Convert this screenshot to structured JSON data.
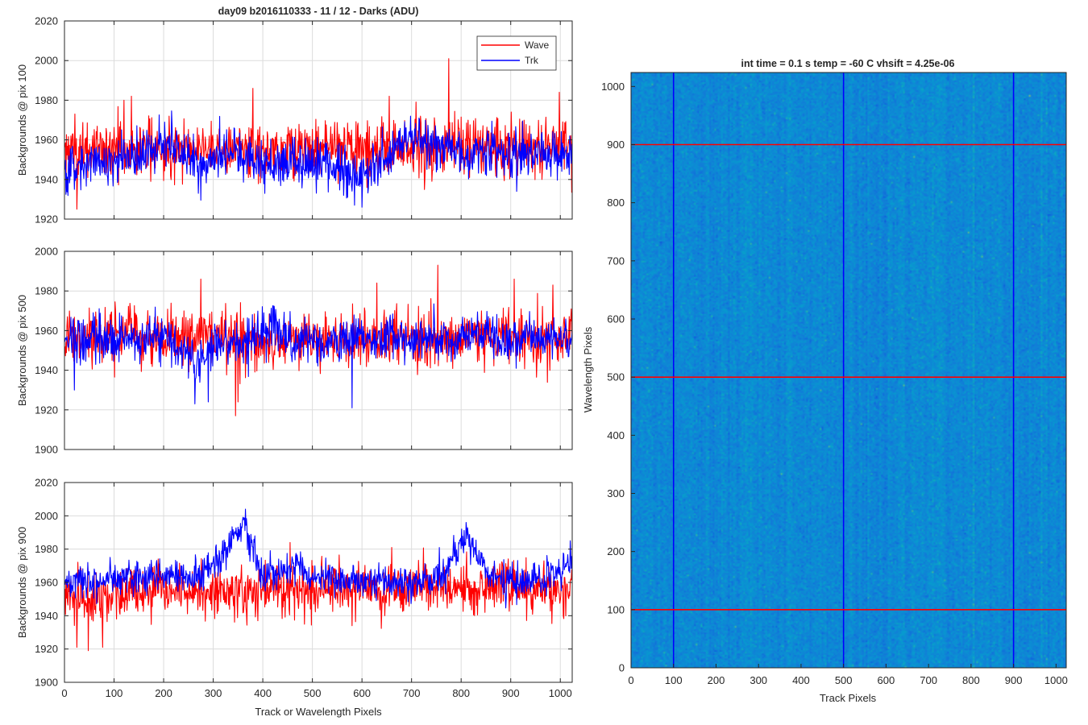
{
  "figure": {
    "left_title": "day09 b2016110333 - 11 / 12 - Darks (ADU)",
    "right_title": "int time = 0.1 s   temp = -60 C   vhsift = 4.25e-06"
  },
  "chart_data": [
    {
      "type": "line",
      "id": "pix100",
      "title": "day09 b2016110333 - 11 / 12 - Darks (ADU)",
      "xlabel": "",
      "ylabel": "Backgrounds @ pix 100",
      "xlim": [
        0,
        1024
      ],
      "ylim": [
        1920,
        2020
      ],
      "xticks": [
        0,
        100,
        200,
        300,
        400,
        500,
        600,
        700,
        800,
        900,
        1000
      ],
      "yticks": [
        1920,
        1940,
        1960,
        1980,
        2000,
        2020
      ],
      "xtick_labels_visible": false,
      "grid": true,
      "legend": {
        "position": "top-right",
        "entries": [
          "Wave",
          "Trk"
        ]
      },
      "series": [
        {
          "name": "Wave",
          "color": "#ff0000",
          "profile": {
            "anchors_x": [
              0,
              200,
              400,
              500,
              600,
              700,
              800,
              900,
              1024
            ],
            "anchors_y": [
              1954,
              1956,
              1955,
              1956,
              1955,
              1956,
              1957,
              1957,
              1957
            ]
          },
          "noise_sd": 7.2,
          "spikes": [
            [
              120,
              1980
            ],
            [
              135,
              1982
            ],
            [
              380,
              1986
            ],
            [
              655,
              1982
            ],
            [
              775,
              2001
            ],
            [
              998,
              1984
            ],
            [
              25,
              1925
            ]
          ]
        },
        {
          "name": "Trk",
          "color": "#0000ff",
          "profile": {
            "anchors_x": [
              0,
              60,
              150,
              200,
              240,
              300,
              340,
              400,
              470,
              520,
              560,
              580,
              620,
              650,
              700,
              760,
              800,
              900,
              1024
            ],
            "anchors_y": [
              1944,
              1948,
              1953,
              1957,
              1952,
              1950,
              1955,
              1948,
              1949,
              1948,
              1945,
              1940,
              1946,
              1950,
              1962,
              1956,
              1952,
              1954,
              1954
            ]
          },
          "noise_sd": 5.8,
          "spikes": [
            [
              20,
              1935
            ],
            [
              585,
              1927
            ],
            [
              600,
              1926
            ],
            [
              270,
              1933
            ]
          ]
        }
      ]
    },
    {
      "type": "line",
      "id": "pix500",
      "title": "",
      "xlabel": "",
      "ylabel": "Backgrounds @ pix 500",
      "xlim": [
        0,
        1024
      ],
      "ylim": [
        1900,
        2000
      ],
      "xticks": [
        0,
        100,
        200,
        300,
        400,
        500,
        600,
        700,
        800,
        900,
        1000
      ],
      "yticks": [
        1900,
        1920,
        1940,
        1960,
        1980,
        2000
      ],
      "xtick_labels_visible": false,
      "grid": true,
      "series": [
        {
          "name": "Wave",
          "color": "#ff0000",
          "profile": {
            "anchors_x": [
              0,
              100,
              200,
              300,
              400,
              500,
              600,
              700,
              800,
              900,
              1024
            ],
            "anchors_y": [
              1955,
              1956,
              1957,
              1956,
              1955,
              1956,
              1955,
              1956,
              1956,
              1956,
              1956
            ]
          },
          "noise_sd": 7.0,
          "spikes": [
            [
              345,
              1917
            ],
            [
              350,
              1924
            ],
            [
              275,
              1986
            ],
            [
              753,
              1993
            ],
            [
              907,
              1986
            ],
            [
              985,
              1983
            ],
            [
              630,
              1984
            ]
          ]
        },
        {
          "name": "Trk",
          "color": "#0000ff",
          "profile": {
            "anchors_x": [
              0,
              100,
              200,
              250,
              270,
              300,
              360,
              420,
              450,
              500,
              560,
              640,
              700,
              760,
              820,
              900,
              960,
              1024
            ],
            "anchors_y": [
              1955,
              1956,
              1956,
              1948,
              1942,
              1953,
              1952,
              1962,
              1955,
              1954,
              1955,
              1957,
              1956,
              1955,
              1958,
              1956,
              1956,
              1956
            ]
          },
          "noise_sd": 5.5,
          "spikes": [
            [
              263,
              1923
            ],
            [
              290,
              1924
            ],
            [
              580,
              1921
            ],
            [
              20,
              1930
            ]
          ]
        }
      ]
    },
    {
      "type": "line",
      "id": "pix900",
      "title": "",
      "xlabel": "Track or Wavelength Pixels",
      "ylabel": "Backgrounds @ pix 900",
      "xlim": [
        0,
        1024
      ],
      "ylim": [
        1900,
        2020
      ],
      "xticks": [
        0,
        100,
        200,
        300,
        400,
        500,
        600,
        700,
        800,
        900,
        1000
      ],
      "yticks": [
        1900,
        1920,
        1940,
        1960,
        1980,
        2000,
        2020
      ],
      "xtick_labels_visible": true,
      "grid": true,
      "series": [
        {
          "name": "Wave",
          "color": "#ff0000",
          "profile": {
            "anchors_x": [
              0,
              60,
              120,
              200,
              300,
              400,
              500,
              600,
              700,
              800,
              900,
              1024
            ],
            "anchors_y": [
              1954,
              1950,
              1953,
              1955,
              1954,
              1955,
              1956,
              1956,
              1957,
              1956,
              1956,
              1956
            ]
          },
          "noise_sd": 8.0,
          "spikes": [
            [
              25,
              1921
            ],
            [
              48,
              1919
            ],
            [
              77,
              1921
            ],
            [
              455,
              1984
            ],
            [
              580,
              1934
            ],
            [
              660,
              1981
            ]
          ]
        },
        {
          "name": "Trk",
          "color": "#0000ff",
          "profile": {
            "anchors_x": [
              0,
              100,
              200,
              260,
              300,
              330,
              360,
              380,
              400,
              450,
              470,
              500,
              700,
              760,
              790,
              810,
              830,
              860,
              900,
              980,
              1024
            ],
            "anchors_y": [
              1960,
              1962,
              1963,
              1964,
              1970,
              1980,
              1996,
              1982,
              1964,
              1966,
              1972,
              1962,
              1961,
              1963,
              1980,
              1990,
              1978,
              1962,
              1960,
              1964,
              1972
            ]
          },
          "noise_sd": 5.2,
          "spikes": [
            [
              365,
              2004
            ],
            [
              810,
              1996
            ],
            [
              1020,
              1985
            ]
          ]
        }
      ]
    },
    {
      "type": "heatmap",
      "id": "dark-frame",
      "title": "int time = 0.1 s   temp = -60 C   vhsift = 4.25e-06",
      "xlabel": "Track Pixels",
      "ylabel": "Wavelength Pixels",
      "xlim": [
        0,
        1024
      ],
      "ylim": [
        0,
        1024
      ],
      "xticks": [
        0,
        100,
        200,
        300,
        400,
        500,
        600,
        700,
        800,
        900,
        1000
      ],
      "yticks": [
        0,
        100,
        200,
        300,
        400,
        500,
        600,
        700,
        800,
        900,
        1000
      ],
      "colormap": "parula",
      "base_value": 0.36,
      "vertical_markers": {
        "x": [
          100,
          500,
          900
        ],
        "color": "#0000ff"
      },
      "horizontal_markers": {
        "y": [
          100,
          500,
          900
        ],
        "color": "#ff0000"
      }
    }
  ]
}
